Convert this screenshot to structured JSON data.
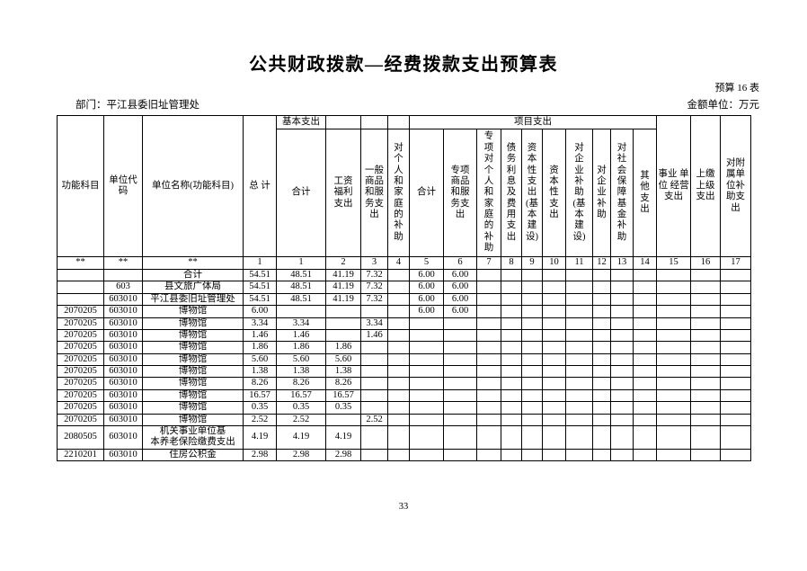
{
  "page": {
    "title": "公共财政拨款—经费拨款支出预算表",
    "table_label": "预算 16 表",
    "department_label": "部门：平江县委旧址管理处",
    "amount_unit_label": "金额单位：万元",
    "page_number": "33"
  },
  "table": {
    "header": {
      "func_subject": "功能科目",
      "unit_code": "单位代\n码",
      "unit_name": "单位名称(功能科目)",
      "total": "总\n计",
      "basic_group": "基本支出",
      "basic_cols": [
        "合计",
        "工资\n福利\n支出",
        "一般\n商品\n和服\n务支\n出",
        "对\n个\n人\n和\n家\n庭\n的\n补\n助"
      ],
      "project_group": "项目支出",
      "project_cols": [
        "合计",
        "专项\n商品\n和服\n务支\n出",
        "专\n项\n对\n个\n人\n和\n家\n庭\n的\n补\n助",
        "债\n务\n利\n息\n及\n费\n用\n支\n出",
        "资\n本\n性\n支\n出\n(基\n本\n建\n设)",
        "资\n本\n性\n支\n出",
        "对\n企\n业\n补\n助\n(基\n本\n建\n设)",
        "对\n企\n业\n补\n助",
        "对\n社\n会\n保\n障\n基\n金\n补\n助",
        "其\n他\n支\n出"
      ],
      "right_cols": [
        "事业\n单位\n经营\n支出",
        "上缴\n上级\n支出",
        "对附\n属单\n位补\n助支\n出"
      ]
    },
    "col_numbers": [
      "**",
      "**",
      "**",
      "1",
      "1",
      "2",
      "3",
      "4",
      "5",
      "6",
      "7",
      "8",
      "9",
      "10",
      "11",
      "12",
      "13",
      "14",
      "15",
      "16",
      "17"
    ],
    "rows": [
      {
        "func": "",
        "code": "",
        "name": "合计",
        "name_align": "left",
        "values": [
          "54.51",
          "48.51",
          "41.19",
          "7.32",
          "",
          "6.00",
          "6.00",
          "",
          "",
          "",
          "",
          "",
          "",
          "",
          "",
          "",
          "",
          ""
        ]
      },
      {
        "func": "",
        "code": "603",
        "name": "县文旅广体局",
        "name_align": "left",
        "values": [
          "54.51",
          "48.51",
          "41.19",
          "7.32",
          "",
          "6.00",
          "6.00",
          "",
          "",
          "",
          "",
          "",
          "",
          "",
          "",
          "",
          "",
          ""
        ]
      },
      {
        "func": "",
        "code": "603010",
        "name": "平江县委旧址管理处",
        "name_align": "left",
        "values": [
          "54.51",
          "48.51",
          "41.19",
          "7.32",
          "",
          "6.00",
          "6.00",
          "",
          "",
          "",
          "",
          "",
          "",
          "",
          "",
          "",
          "",
          ""
        ]
      },
      {
        "func": "2070205",
        "code": "603010",
        "name": "博物馆",
        "name_align": "center",
        "values": [
          "6.00",
          "",
          "",
          "",
          "",
          "6.00",
          "6.00",
          "",
          "",
          "",
          "",
          "",
          "",
          "",
          "",
          "",
          "",
          ""
        ]
      },
      {
        "func": "2070205",
        "code": "603010",
        "name": "博物馆",
        "name_align": "center",
        "values": [
          "3.34",
          "3.34",
          "",
          "3.34",
          "",
          "",
          "",
          "",
          "",
          "",
          "",
          "",
          "",
          "",
          "",
          "",
          "",
          ""
        ]
      },
      {
        "func": "2070205",
        "code": "603010",
        "name": "博物馆",
        "name_align": "center",
        "values": [
          "1.46",
          "1.46",
          "",
          "1.46",
          "",
          "",
          "",
          "",
          "",
          "",
          "",
          "",
          "",
          "",
          "",
          "",
          "",
          ""
        ]
      },
      {
        "func": "2070205",
        "code": "603010",
        "name": "博物馆",
        "name_align": "center",
        "values": [
          "1.86",
          "1.86",
          "1.86",
          "",
          "",
          "",
          "",
          "",
          "",
          "",
          "",
          "",
          "",
          "",
          "",
          "",
          "",
          ""
        ]
      },
      {
        "func": "2070205",
        "code": "603010",
        "name": "博物馆",
        "name_align": "center",
        "values": [
          "5.60",
          "5.60",
          "5.60",
          "",
          "",
          "",
          "",
          "",
          "",
          "",
          "",
          "",
          "",
          "",
          "",
          "",
          "",
          ""
        ]
      },
      {
        "func": "2070205",
        "code": "603010",
        "name": "博物馆",
        "name_align": "center",
        "values": [
          "1.38",
          "1.38",
          "1.38",
          "",
          "",
          "",
          "",
          "",
          "",
          "",
          "",
          "",
          "",
          "",
          "",
          "",
          "",
          ""
        ]
      },
      {
        "func": "2070205",
        "code": "603010",
        "name": "博物馆",
        "name_align": "center",
        "values": [
          "8.26",
          "8.26",
          "8.26",
          "",
          "",
          "",
          "",
          "",
          "",
          "",
          "",
          "",
          "",
          "",
          "",
          "",
          "",
          ""
        ]
      },
      {
        "func": "2070205",
        "code": "603010",
        "name": "博物馆",
        "name_align": "center",
        "values": [
          "16.57",
          "16.57",
          "16.57",
          "",
          "",
          "",
          "",
          "",
          "",
          "",
          "",
          "",
          "",
          "",
          "",
          "",
          "",
          ""
        ]
      },
      {
        "func": "2070205",
        "code": "603010",
        "name": "博物馆",
        "name_align": "center",
        "values": [
          "0.35",
          "0.35",
          "0.35",
          "",
          "",
          "",
          "",
          "",
          "",
          "",
          "",
          "",
          "",
          "",
          "",
          "",
          "",
          ""
        ]
      },
      {
        "func": "2070205",
        "code": "603010",
        "name": "博物馆",
        "name_align": "center",
        "values": [
          "2.52",
          "2.52",
          "",
          "2.52",
          "",
          "",
          "",
          "",
          "",
          "",
          "",
          "",
          "",
          "",
          "",
          "",
          "",
          ""
        ]
      },
      {
        "func": "2080505",
        "code": "603010",
        "name": "机关事业单位基\n本养老保险缴费支出",
        "name_align": "center",
        "values": [
          "4.19",
          "4.19",
          "4.19",
          "",
          "",
          "",
          "",
          "",
          "",
          "",
          "",
          "",
          "",
          "",
          "",
          "",
          "",
          ""
        ]
      },
      {
        "func": "2210201",
        "code": "603010",
        "name": "住房公积金",
        "name_align": "center",
        "values": [
          "2.98",
          "2.98",
          "2.98",
          "",
          "",
          "",
          "",
          "",
          "",
          "",
          "",
          "",
          "",
          "",
          "",
          "",
          "",
          ""
        ]
      }
    ]
  }
}
